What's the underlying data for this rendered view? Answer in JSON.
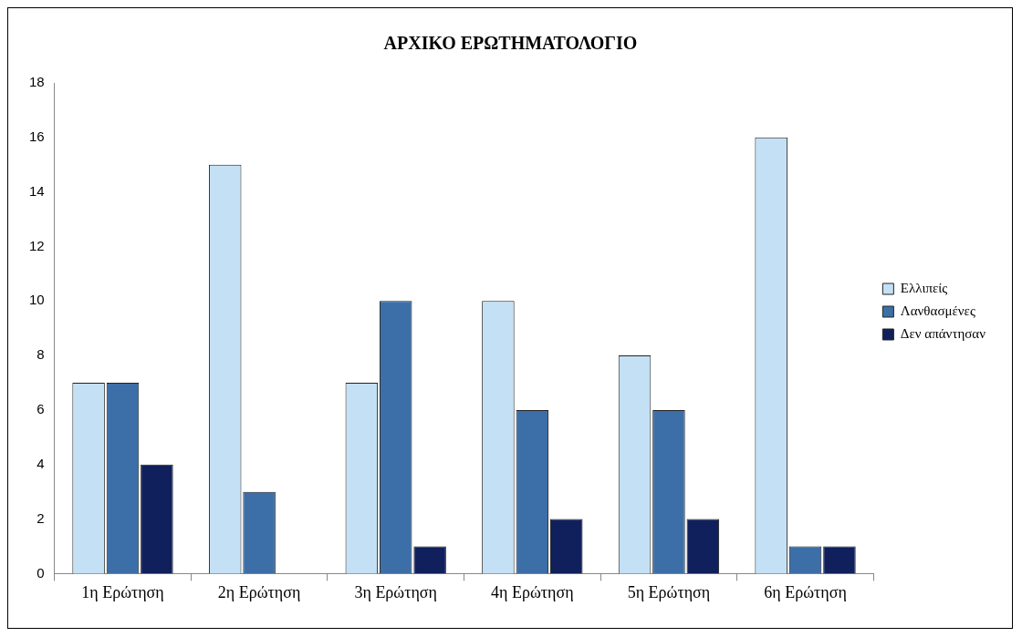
{
  "chart_data": {
    "type": "bar",
    "title": "ΑΡΧΙΚΟ ΕΡΩΤΗΜΑΤΟΛΟΓΙΟ",
    "categories": [
      "1η Ερώτηση",
      "2η Ερώτηση",
      "3η Ερώτηση",
      "4η Ερώτηση",
      "5η Ερώτηση",
      "6η Ερώτηση"
    ],
    "series": [
      {
        "name": "Ελλιπείς",
        "color": "#c4e0f4",
        "values": [
          7,
          15,
          7,
          10,
          8,
          16
        ]
      },
      {
        "name": "Λανθασμένες",
        "color": "#3c6fa8",
        "values": [
          7,
          3,
          10,
          6,
          6,
          1
        ]
      },
      {
        "name": "Δεν απάντησαν",
        "color": "#10205c",
        "values": [
          4,
          0,
          1,
          2,
          2,
          1
        ]
      }
    ],
    "ylim": [
      0,
      18
    ],
    "yticks": [
      0,
      2,
      4,
      6,
      8,
      10,
      12,
      14,
      16,
      18
    ],
    "grid": false,
    "legend": "right"
  }
}
